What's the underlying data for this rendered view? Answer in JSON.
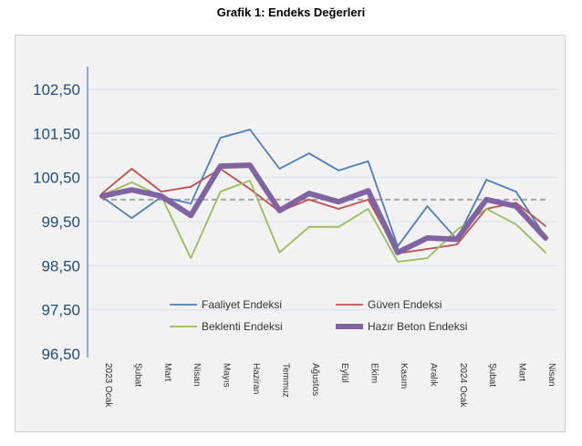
{
  "chart_data": {
    "type": "line",
    "title": "Grafik 1: Endeks Değerleri",
    "categories": [
      "2023 Ocak",
      "Şubat",
      "Mart",
      "Nisan",
      "Mayıs",
      "Haziran",
      "Temmuz",
      "Ağustos",
      "Eylül",
      "Ekim",
      "Kasım",
      "Aralık",
      "2024 Ocak",
      "Şubat",
      "Mart",
      "Nisan"
    ],
    "yticks": [
      "96,50",
      "97,50",
      "98,50",
      "99,50",
      "100,50",
      "101,50",
      "102,50"
    ],
    "ylim": [
      96.5,
      102.5
    ],
    "grid": true,
    "legend_position": "bottom-inside",
    "reference_line": {
      "value": 100,
      "style": "dashed",
      "color": "#a6a6a6"
    },
    "series": [
      {
        "name": "Faaliyet Endeksi",
        "color": "#4a7ebb",
        "values": [
          100.06,
          99.58,
          100.06,
          99.91,
          101.4,
          101.59,
          100.7,
          101.05,
          100.66,
          100.87,
          98.94,
          99.85,
          99.1,
          100.45,
          100.18,
          99.15
        ]
      },
      {
        "name": "Güven Endeksi",
        "color": "#c0504d",
        "values": [
          100.14,
          100.7,
          100.18,
          100.29,
          100.7,
          100.24,
          99.73,
          100.0,
          99.79,
          100.0,
          98.78,
          98.88,
          98.98,
          99.79,
          99.93,
          99.4
        ]
      },
      {
        "name": "Beklenti Endeksi",
        "color": "#9bbb59",
        "values": [
          100.1,
          100.39,
          100.08,
          98.67,
          100.18,
          100.43,
          98.8,
          99.38,
          99.38,
          99.79,
          98.59,
          98.67,
          99.31,
          99.79,
          99.44,
          98.8
        ]
      },
      {
        "name": "Hazır Beton Endeksi",
        "color": "#8064a2",
        "values": [
          100.08,
          100.22,
          100.08,
          99.64,
          100.76,
          100.78,
          99.75,
          100.14,
          99.95,
          100.2,
          98.8,
          99.13,
          99.1,
          100.0,
          99.85,
          99.13
        ]
      }
    ]
  }
}
